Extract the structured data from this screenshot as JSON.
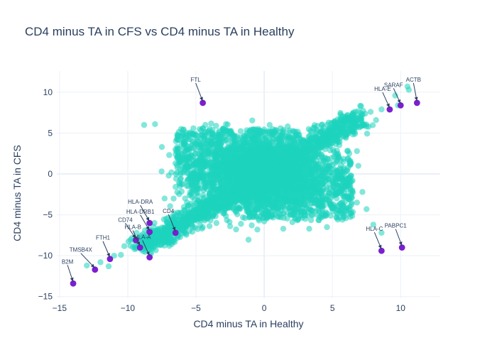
{
  "chart_data": {
    "type": "scatter",
    "title": "CD4 minus TA in CFS vs CD4 minus TA in Healthy",
    "xlabel": "CD4 minus TA in Healthy",
    "ylabel": "CD4 minus TA in CFS",
    "xlim": [
      -15.2,
      12.9
    ],
    "ylim": [
      -15.2,
      12.6
    ],
    "xticks": [
      -15,
      -10,
      -5,
      0,
      5,
      10
    ],
    "yticks": [
      -15,
      -10,
      -5,
      0,
      5,
      10
    ],
    "grid": true,
    "colors": {
      "background": "#e5ecf6",
      "points": "#1dd3bd",
      "highlight": "#7b1fd0",
      "text": "#2a3f5f"
    },
    "background_points": [
      [
        -8.8,
        6.0
      ],
      [
        -8.0,
        6.1
      ],
      [
        -7.5,
        3.3
      ],
      [
        -6.0,
        5.0
      ],
      [
        -5.8,
        4.0
      ],
      [
        -5.5,
        2.8
      ],
      [
        -5.2,
        0.8
      ],
      [
        -4.5,
        5.6
      ],
      [
        -6.5,
        1.3
      ],
      [
        -7.0,
        -0.2
      ],
      [
        -6.2,
        -1.2
      ],
      [
        -5.0,
        -0.7
      ],
      [
        -4.0,
        5.5
      ],
      [
        -3.0,
        5.1
      ],
      [
        -2.8,
        6.1
      ],
      [
        -1.0,
        5.4
      ],
      [
        -2.0,
        4.6
      ],
      [
        -0.5,
        4.8
      ],
      [
        1.2,
        5.6
      ],
      [
        3.5,
        5.1
      ],
      [
        7.8,
        7.6
      ],
      [
        8.6,
        7.9
      ],
      [
        9.6,
        9.6
      ],
      [
        9.8,
        8.4
      ],
      [
        10.5,
        10.7
      ],
      [
        10.6,
        10.3
      ],
      [
        8.2,
        6.6
      ],
      [
        7.1,
        8.3
      ],
      [
        6.5,
        7.2
      ],
      [
        6.0,
        6.5
      ],
      [
        7.5,
        5.8
      ],
      [
        5.2,
        -0.5
      ],
      [
        5.5,
        -1.5
      ],
      [
        6.0,
        -2.8
      ],
      [
        6.8,
        -3.5
      ],
      [
        7.5,
        -4.3
      ],
      [
        5.8,
        -5.3
      ],
      [
        4.3,
        -5.2
      ],
      [
        4.6,
        -6.5
      ],
      [
        3.3,
        -6.7
      ],
      [
        2.5,
        -5.5
      ],
      [
        1.4,
        -6.7
      ],
      [
        0.0,
        -5.8
      ],
      [
        -0.5,
        -6.8
      ],
      [
        -1.7,
        -6.1
      ],
      [
        -2.5,
        -6.4
      ],
      [
        -3.5,
        -6.0
      ],
      [
        -4.5,
        -6.5
      ],
      [
        -3.0,
        -4.8
      ],
      [
        -2.0,
        -3.2
      ],
      [
        4.0,
        -3.5
      ],
      [
        5.0,
        -4.2
      ],
      [
        8.0,
        -6.2
      ],
      [
        8.6,
        -7.2
      ],
      [
        -11.4,
        -11.3
      ],
      [
        -10.5,
        -9.9
      ],
      [
        -9.5,
        -9.2
      ],
      [
        -9.8,
        -8.8
      ],
      [
        -11.0,
        -10.0
      ],
      [
        -12.0,
        -10.8
      ],
      [
        -13.0,
        -11.2
      ],
      [
        -8.0,
        -8.3
      ],
      [
        -7.5,
        -7.7
      ],
      [
        -7.0,
        -8.5
      ],
      [
        -6.0,
        -6.8
      ],
      [
        -5.2,
        -5.7
      ],
      [
        -4.2,
        -4.8
      ],
      [
        -3.2,
        -4.2
      ],
      [
        -9.0,
        -8.2
      ],
      [
        -8.5,
        -8.7
      ],
      [
        2.2,
        4.3
      ],
      [
        3.8,
        4.5
      ],
      [
        4.8,
        3.8
      ],
      [
        1.9,
        -4.5
      ],
      [
        -1.5,
        3.8
      ],
      [
        -6.5,
        3.0
      ],
      [
        -6.8,
        0.2
      ],
      [
        -7.3,
        -3.0
      ],
      [
        -6.6,
        -4.8
      ],
      [
        -5.8,
        -3.0
      ],
      [
        6.3,
        -1.7
      ],
      [
        7.2,
        -2.2
      ],
      [
        6.8,
        2.8
      ],
      [
        6.9,
        1.0
      ],
      [
        5.4,
        6.7
      ],
      [
        4.2,
        6.0
      ],
      [
        0.4,
        6.0
      ],
      [
        -3.8,
        3.8
      ]
    ],
    "highlighted": [
      {
        "label": "ACTB",
        "x": 11.2,
        "y": 8.7
      },
      {
        "label": "SARAF",
        "x": 10.0,
        "y": 8.4
      },
      {
        "label": "HLA-E",
        "x": 9.2,
        "y": 7.9
      },
      {
        "label": "FTL",
        "x": -4.5,
        "y": 8.7
      },
      {
        "label": "PABPC1",
        "x": 10.1,
        "y": -9.0
      },
      {
        "label": "HLA-C",
        "x": 8.6,
        "y": -9.4
      },
      {
        "label": "CD4",
        "x": -6.5,
        "y": -7.2
      },
      {
        "label": "HLA-DRA",
        "x": -8.4,
        "y": -6.0
      },
      {
        "label": "HLA-DRB1",
        "x": -8.4,
        "y": -7.1
      },
      {
        "label": "CD74",
        "x": -9.4,
        "y": -8.1
      },
      {
        "label": "HLA-B",
        "x": -9.1,
        "y": -9.0
      },
      {
        "label": "HLA-A",
        "x": -8.4,
        "y": -10.2
      },
      {
        "label": "FTH1",
        "x": -11.3,
        "y": -10.4
      },
      {
        "label": "TMSB4X",
        "x": -12.4,
        "y": -11.7
      },
      {
        "label": "B2M",
        "x": -14.0,
        "y": -13.4
      }
    ]
  }
}
